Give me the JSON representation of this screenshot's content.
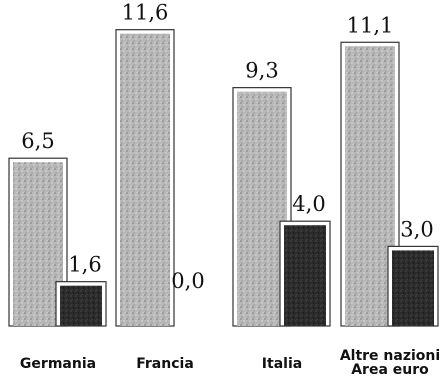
{
  "chart_data": {
    "type": "bar",
    "title": "",
    "xlabel": "",
    "ylabel": "",
    "ylim": [
      0,
      12
    ],
    "grid": false,
    "legend": "none",
    "categories": [
      [
        "Germania"
      ],
      [
        "Francia"
      ],
      [
        "Italia"
      ],
      [
        "Altre nazioni",
        "Area euro"
      ]
    ],
    "series": [
      {
        "values": [
          6.5,
          11.6,
          9.3,
          11.1
        ],
        "labels": [
          "6,5",
          "11,6",
          "9,3",
          "11,1"
        ],
        "fill": "#b3b3b3",
        "style": "light-stipple"
      },
      {
        "values": [
          1.6,
          0.0,
          4.0,
          3.0
        ],
        "labels": [
          "1,6",
          "0,0",
          "4,0",
          "3,0"
        ],
        "fill": "#2a2a2a",
        "style": "dark-stipple"
      }
    ]
  }
}
